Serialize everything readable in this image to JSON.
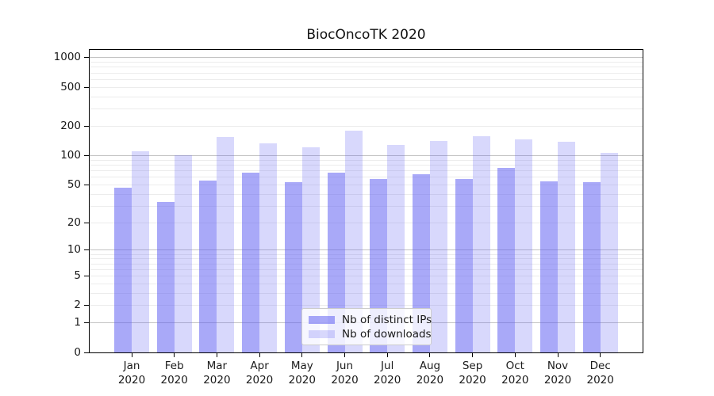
{
  "chart_data": {
    "type": "bar",
    "title": "BiocOncoTK 2020",
    "categories": [
      "Jan 2020",
      "Feb 2020",
      "Mar 2020",
      "Apr 2020",
      "May 2020",
      "Jun 2020",
      "Jul 2020",
      "Aug 2020",
      "Sep 2020",
      "Oct 2020",
      "Nov 2020",
      "Dec 2020"
    ],
    "series": [
      {
        "name": "Nb of distinct IPs",
        "color": "rgba(92,92,242,0.53)",
        "values": [
          47,
          33,
          55,
          67,
          53,
          67,
          57,
          64,
          57,
          75,
          54,
          53
        ]
      },
      {
        "name": "Nb of downloads",
        "color": "rgba(92,92,242,0.24)",
        "values": [
          110,
          100,
          154,
          133,
          122,
          181,
          128,
          142,
          157,
          147,
          139,
          107
        ]
      }
    ],
    "xlabel": "",
    "ylabel": "",
    "yscale": "log1p",
    "ylim": [
      0,
      1200
    ],
    "yticks": [
      0,
      1,
      2,
      5,
      10,
      20,
      50,
      100,
      200,
      500,
      1000
    ],
    "grid_major": [
      1,
      10,
      100,
      1000
    ],
    "grid_minor": [
      2,
      3,
      4,
      5,
      6,
      7,
      8,
      9,
      20,
      30,
      40,
      50,
      60,
      70,
      80,
      90,
      200,
      300,
      400,
      500,
      600,
      700,
      800,
      900
    ],
    "legend_position": "lower-center",
    "grid": "on"
  },
  "colors": {
    "grid_major": "#c3c3c3",
    "grid_minor": "#ececec",
    "spine": "#000000",
    "text": "#1a1a1a"
  }
}
